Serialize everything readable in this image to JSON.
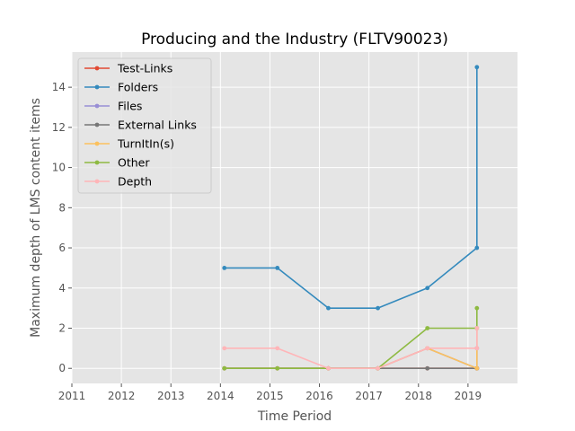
{
  "chart_data": {
    "type": "line",
    "title": "Producing and the Industry (FLTV90023)",
    "xlabel": "Time Period",
    "ylabel": "Maximum depth of LMS content items",
    "xlim": [
      2011,
      2020
    ],
    "ylim": [
      -0.75,
      15.75
    ],
    "xticks": [
      2011,
      2012,
      2013,
      2014,
      2015,
      2016,
      2017,
      2018,
      2019
    ],
    "xtick_labels": [
      "2011",
      "2012",
      "2013",
      "2014",
      "2015",
      "2016",
      "2017",
      "2018",
      "2019"
    ],
    "yticks": [
      0,
      2,
      4,
      6,
      8,
      10,
      12,
      14
    ],
    "ytick_labels": [
      "0",
      "2",
      "4",
      "6",
      "8",
      "10",
      "12",
      "14"
    ],
    "grid": true,
    "legend_position": "top-left",
    "series": [
      {
        "name": "Test-Links",
        "color": "#e24a33",
        "points": [
          [
            2014.08,
            0
          ],
          [
            2015.15,
            0
          ],
          [
            2016.18,
            0
          ],
          [
            2017.18,
            0
          ],
          [
            2018.18,
            0
          ],
          [
            2019.18,
            0
          ],
          [
            2019.18,
            0
          ]
        ]
      },
      {
        "name": "Folders",
        "color": "#348abd",
        "points": [
          [
            2014.08,
            5
          ],
          [
            2015.15,
            5
          ],
          [
            2016.18,
            3
          ],
          [
            2017.18,
            3
          ],
          [
            2018.18,
            4
          ],
          [
            2019.18,
            6
          ],
          [
            2019.18,
            15
          ]
        ]
      },
      {
        "name": "Files",
        "color": "#988ed5",
        "points": [
          [
            2014.08,
            0
          ],
          [
            2015.15,
            0
          ],
          [
            2016.18,
            0
          ],
          [
            2017.18,
            0
          ],
          [
            2018.18,
            1
          ],
          [
            2019.18,
            0
          ],
          [
            2019.18,
            1
          ]
        ]
      },
      {
        "name": "External Links",
        "color": "#777777",
        "points": [
          [
            2014.08,
            0
          ],
          [
            2015.15,
            0
          ],
          [
            2016.18,
            0
          ],
          [
            2017.18,
            0
          ],
          [
            2018.18,
            0
          ],
          [
            2019.18,
            0
          ],
          [
            2019.18,
            0
          ]
        ]
      },
      {
        "name": "TurnItIn(s)",
        "color": "#fbc15e",
        "points": [
          [
            2014.08,
            0
          ],
          [
            2015.15,
            0
          ],
          [
            2016.18,
            0
          ],
          [
            2017.18,
            0
          ],
          [
            2018.18,
            1
          ],
          [
            2019.18,
            0
          ],
          [
            2019.18,
            2
          ]
        ]
      },
      {
        "name": "Other",
        "color": "#8eba42",
        "points": [
          [
            2014.08,
            0
          ],
          [
            2015.15,
            0
          ],
          [
            2016.18,
            0
          ],
          [
            2017.18,
            0
          ],
          [
            2018.18,
            2
          ],
          [
            2019.18,
            2
          ],
          [
            2019.18,
            3
          ]
        ]
      },
      {
        "name": "Depth",
        "color": "#ffb5b8",
        "points": [
          [
            2014.08,
            1
          ],
          [
            2015.15,
            1
          ],
          [
            2016.18,
            0
          ],
          [
            2017.18,
            0
          ],
          [
            2018.18,
            1
          ],
          [
            2019.18,
            1
          ],
          [
            2019.18,
            2
          ]
        ]
      }
    ]
  }
}
